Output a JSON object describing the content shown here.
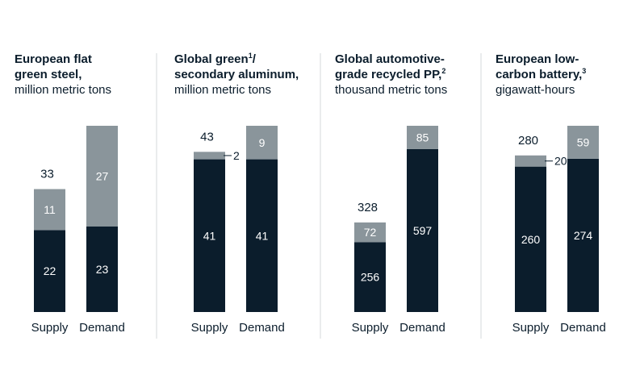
{
  "colors": {
    "dark": "#0b1d2c",
    "light": "#8a959b",
    "divider": "#d4d8db",
    "text": "#0b1d2c",
    "label_on_bar": "#ffffff"
  },
  "chart_data": [
    {
      "type": "bar",
      "stacked": true,
      "title_lines": [
        "European flat",
        "green steel,"
      ],
      "title_sup": "",
      "subtitle": "million metric tons",
      "categories": [
        "Supply",
        "Demand"
      ],
      "series": [
        {
          "values": [
            22,
            23
          ],
          "labels": [
            "22",
            "23"
          ]
        },
        {
          "values": [
            11,
            27
          ],
          "labels": [
            "11",
            "27"
          ]
        }
      ],
      "totals": [
        33,
        null
      ],
      "total_labels": [
        "33",
        ""
      ],
      "callouts": []
    },
    {
      "type": "bar",
      "stacked": true,
      "title_lines": [
        "Global green",
        "secondary aluminum,"
      ],
      "title_sup": "1",
      "title_after_sup": "/",
      "subtitle": "million metric tons",
      "categories": [
        "Supply",
        "Demand"
      ],
      "series": [
        {
          "values": [
            41,
            41
          ],
          "labels": [
            "41",
            "41"
          ]
        },
        {
          "values": [
            2,
            9
          ],
          "labels": [
            "",
            "9"
          ]
        }
      ],
      "totals": [
        43,
        null
      ],
      "total_labels": [
        "43",
        ""
      ],
      "callouts": [
        {
          "bar": 0,
          "label": "2"
        }
      ]
    },
    {
      "type": "bar",
      "stacked": true,
      "title_lines": [
        "Global automotive-",
        "grade recycled PP,"
      ],
      "title_sup": "2",
      "subtitle": "thousand metric tons",
      "categories": [
        "Supply",
        "Demand"
      ],
      "series": [
        {
          "values": [
            256,
            597
          ],
          "labels": [
            "256",
            "597"
          ]
        },
        {
          "values": [
            72,
            85
          ],
          "labels": [
            "72",
            "85"
          ]
        }
      ],
      "totals": [
        328,
        null
      ],
      "total_labels": [
        "328",
        ""
      ],
      "callouts": []
    },
    {
      "type": "bar",
      "stacked": true,
      "title_lines": [
        "European low-",
        "carbon battery,"
      ],
      "title_sup": "3",
      "subtitle": "gigawatt-hours",
      "categories": [
        "Supply",
        "Demand"
      ],
      "series": [
        {
          "values": [
            260,
            274
          ],
          "labels": [
            "260",
            "274"
          ]
        },
        {
          "values": [
            20,
            59
          ],
          "labels": [
            "",
            "59"
          ]
        }
      ],
      "totals": [
        280,
        null
      ],
      "total_labels": [
        "280",
        ""
      ],
      "callouts": [
        {
          "bar": 0,
          "label": "20"
        }
      ]
    }
  ]
}
